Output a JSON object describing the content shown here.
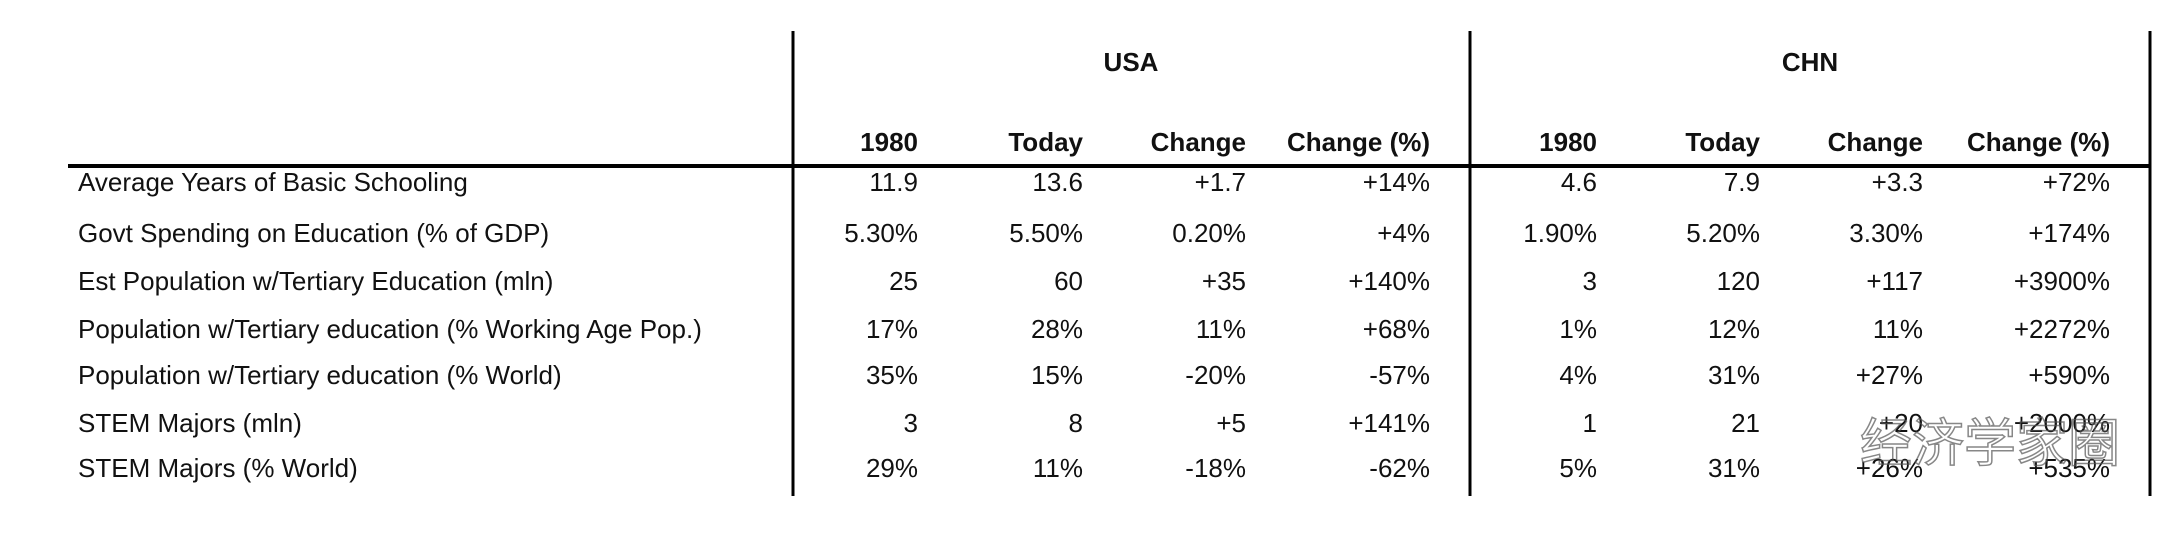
{
  "table": {
    "groups": [
      "USA",
      "CHN"
    ],
    "columns": [
      "1980",
      "Today",
      "Change",
      "Change (%)",
      "1980",
      "Today",
      "Change",
      "Change (%)"
    ],
    "rows": [
      [
        "Average Years of Basic Schooling",
        "11.9",
        "13.6",
        "+1.7",
        "+14%",
        "4.6",
        "7.9",
        "+3.3",
        "+72%"
      ],
      [
        "Govt Spending on Education (% of GDP)",
        "5.30%",
        "5.50%",
        "0.20%",
        "+4%",
        "1.90%",
        "5.20%",
        "3.30%",
        "+174%"
      ],
      [
        "Est Population w/Tertiary Education (mln)",
        "25",
        "60",
        "+35",
        "+140%",
        "3",
        "120",
        "+117",
        "+3900%"
      ],
      [
        "Population w/Tertiary education (% Working Age Pop.)",
        "17%",
        "28%",
        "11%",
        "+68%",
        "1%",
        "12%",
        "11%",
        "+2272%"
      ],
      [
        "Population w/Tertiary education (% World)",
        "35%",
        "15%",
        "-20%",
        "-57%",
        "4%",
        "31%",
        "+27%",
        "+590%"
      ],
      [
        "STEM Majors (mln)",
        "3",
        "8",
        "+5",
        "+141%",
        "1",
        "21",
        "+20",
        "+2000%"
      ],
      [
        "STEM Majors  (% World)",
        "29%",
        "11%",
        "-18%",
        "-62%",
        "5%",
        "31%",
        "+26%",
        "+535%"
      ]
    ]
  },
  "watermark": "经济学家圈"
}
